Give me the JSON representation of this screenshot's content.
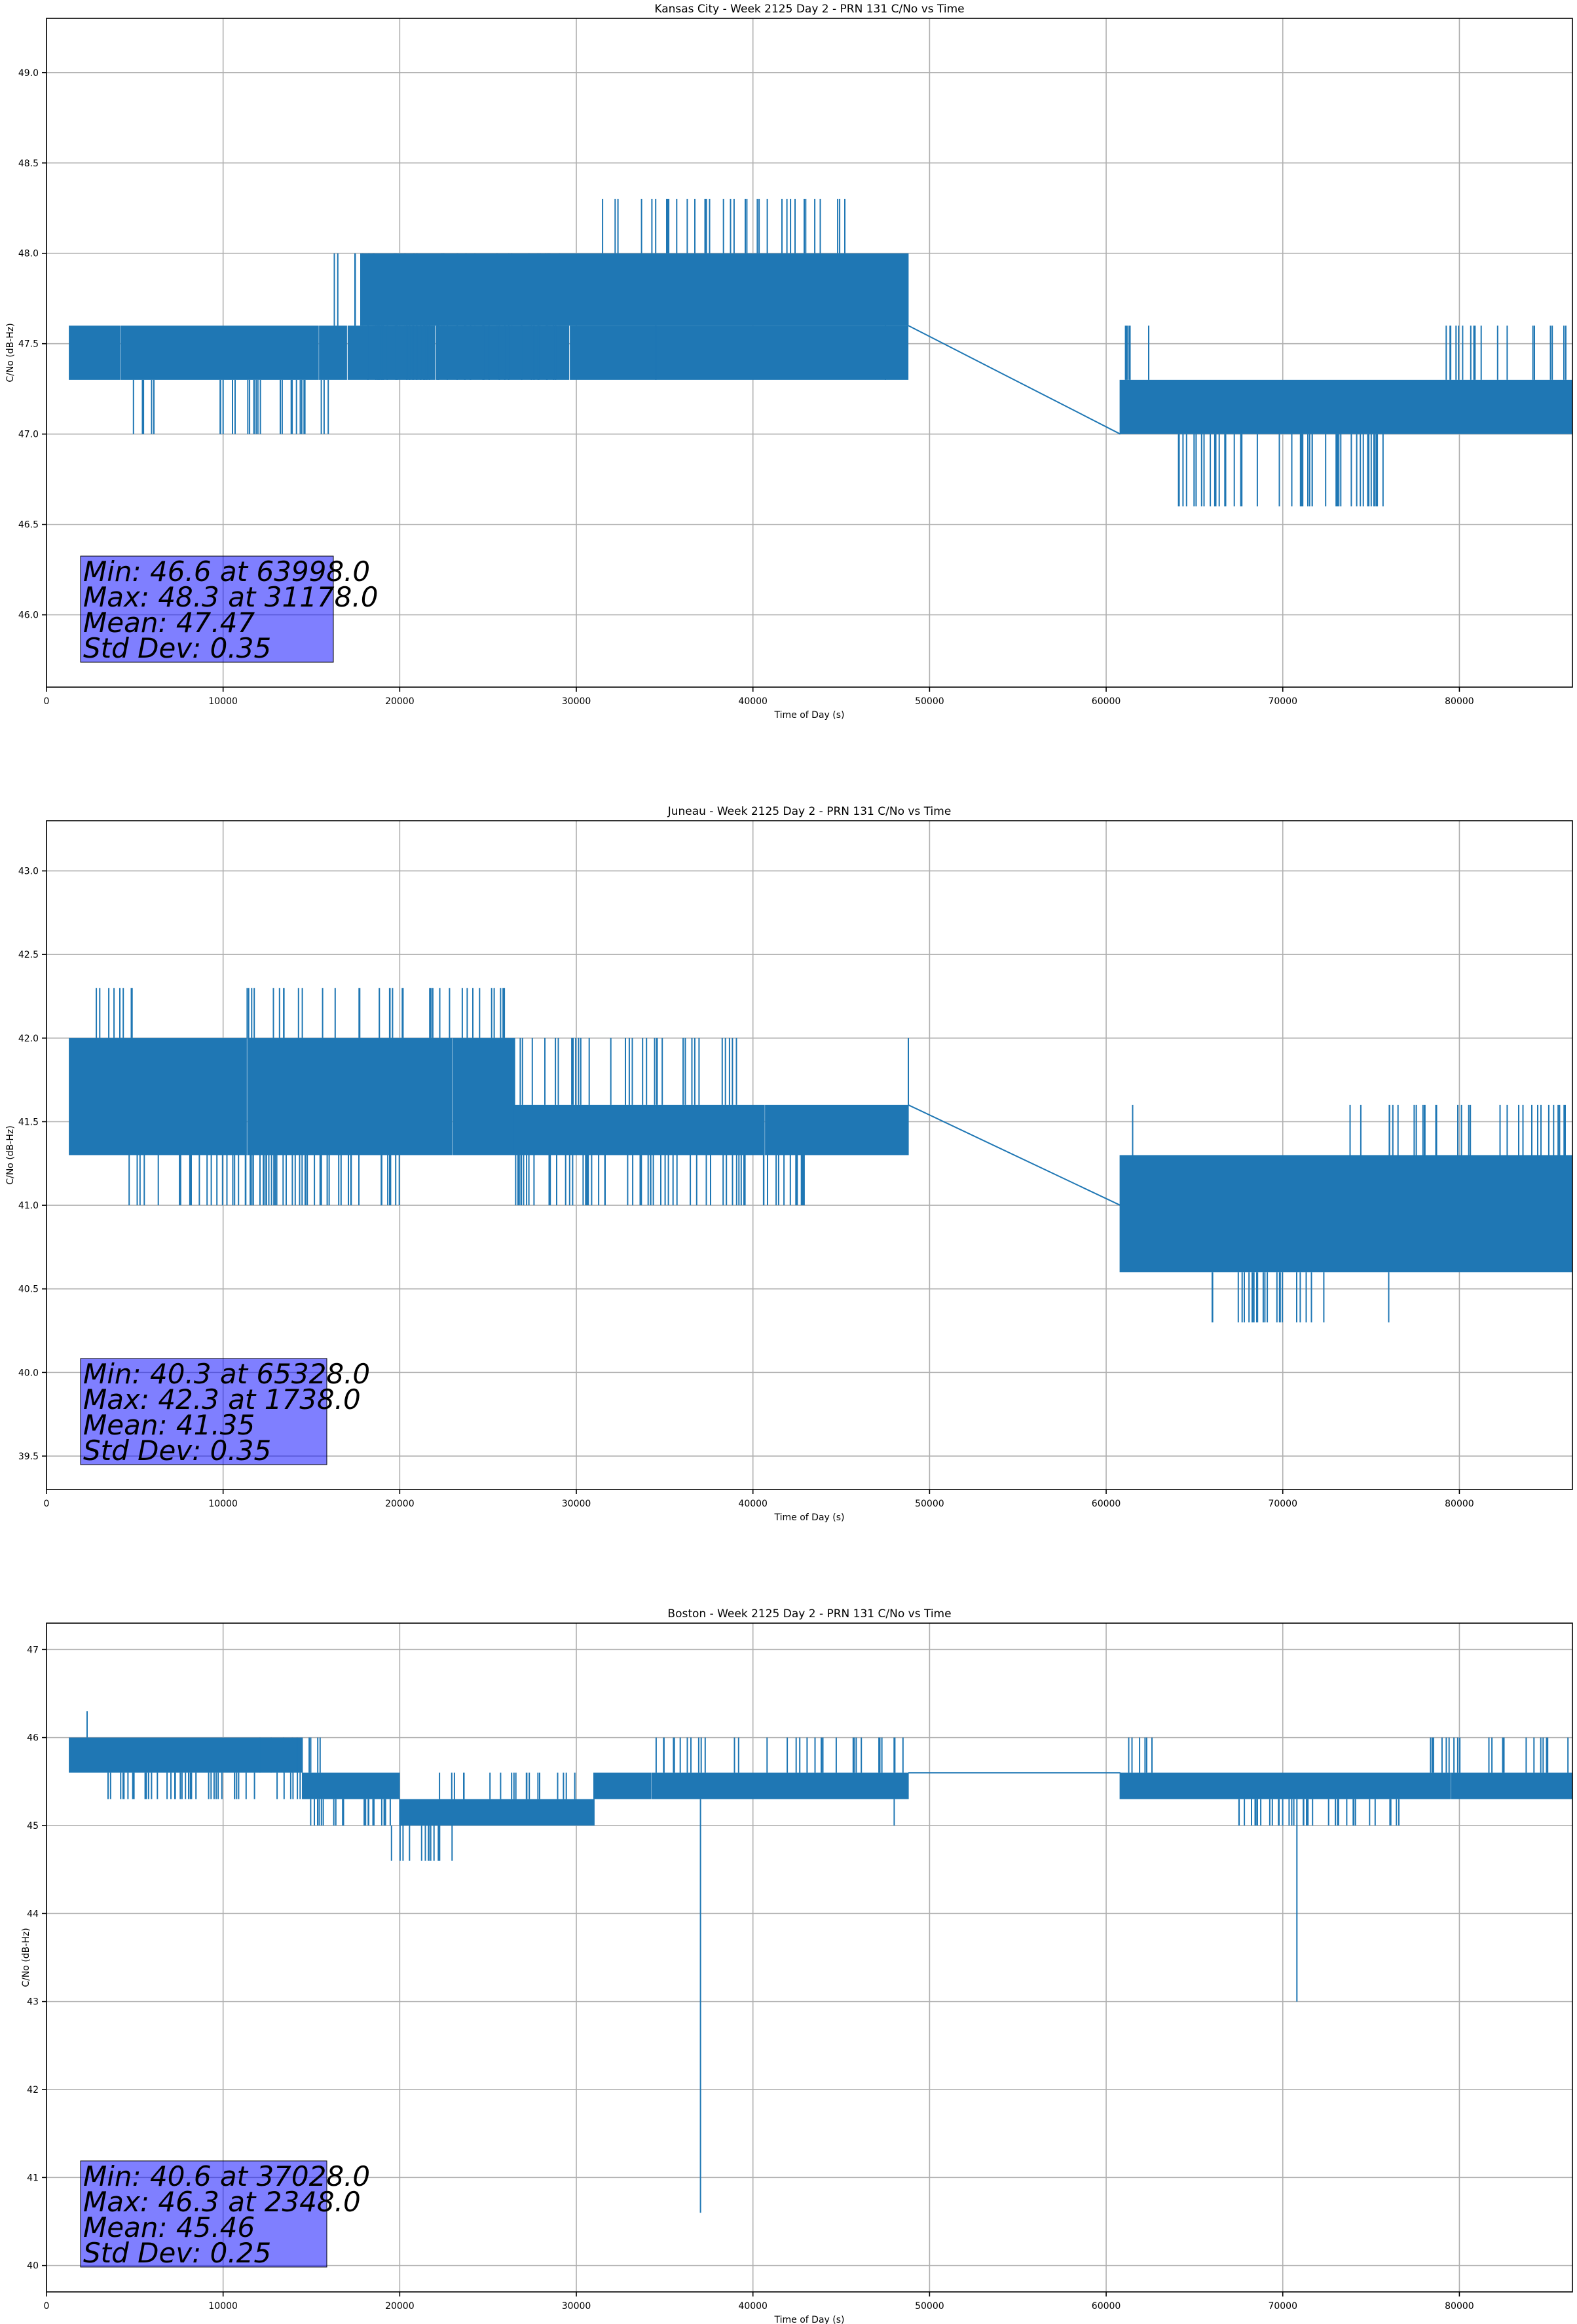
{
  "chart_data": [
    {
      "type": "line",
      "title": "Kansas City - Week 2125 Day 2 - PRN 131 C/No vs Time",
      "xlabel": "Time of Day (s)",
      "ylabel": "C/No (dB-Hz)",
      "xlim": [
        0,
        86400
      ],
      "ylim": [
        45.6,
        49.3
      ],
      "xticks": [
        0,
        10000,
        20000,
        30000,
        40000,
        50000,
        60000,
        70000,
        80000
      ],
      "yticks": [
        "46.0",
        "46.5",
        "47.0",
        "47.5",
        "48.0",
        "48.5",
        "49.0"
      ],
      "grid": true,
      "color": "#1f77b4",
      "gap": [
        48800,
        60800
      ],
      "segments": [
        {
          "x": [
            1300,
            48800
          ],
          "band": [
            47.3,
            47.6
          ],
          "lo": [
            {
              "x": [
                4800,
                6200
              ],
              "y": 47.0
            },
            {
              "x": [
                9500,
                16000
              ],
              "y": 47.0
            }
          ],
          "hi": [
            {
              "x": [
                16000,
                29500
              ],
              "y": 48.0
            }
          ]
        },
        {
          "x": [
            17800,
            48800
          ],
          "band": [
            47.6,
            48.0
          ],
          "lo": [
            {
              "x": [
                17800,
                29000
              ],
              "y": 47.3
            },
            {
              "x": [
                34500,
                34500
              ],
              "y": 47.3
            },
            {
              "x": [
                47500,
                47500
              ],
              "y": 47.3
            }
          ],
          "hi": [
            {
              "x": [
                31000,
                45500
              ],
              "y": 48.3
            }
          ]
        },
        {
          "x": [
            60800,
            86400
          ],
          "band": [
            47.0,
            47.3
          ],
          "lo": [
            {
              "x": [
                64000,
                76000
              ],
              "y": 46.6
            }
          ],
          "hi": [
            {
              "x": [
                61000,
                62500
              ],
              "y": 47.6
            },
            {
              "x": [
                79000,
                86400
              ],
              "y": 47.6
            }
          ]
        }
      ],
      "gap_line": [
        [
          48800,
          47.6
        ],
        [
          60800,
          47.0
        ]
      ],
      "stats": [
        "Min: 46.6 at 63998.0",
        "Max: 48.3 at 31178.0",
        "Mean: 47.47",
        "Std Dev: 0.35"
      ]
    },
    {
      "type": "line",
      "title": "Juneau - Week 2125 Day 2 - PRN 131 C/No vs Time",
      "xlabel": "Time of Day (s)",
      "ylabel": "C/No (dB-Hz)",
      "xlim": [
        0,
        86400
      ],
      "ylim": [
        39.3,
        43.3
      ],
      "xticks": [
        0,
        10000,
        20000,
        30000,
        40000,
        50000,
        60000,
        70000,
        80000
      ],
      "yticks": [
        "39.5",
        "40.0",
        "40.5",
        "41.0",
        "41.5",
        "42.0",
        "42.5",
        "43.0"
      ],
      "grid": true,
      "color": "#1f77b4",
      "gap": [
        48800,
        60800
      ],
      "segments": [
        {
          "x": [
            1300,
            26500
          ],
          "band": [
            41.3,
            42.0
          ],
          "lo": [
            {
              "x": [
                4500,
                20000
              ],
              "y": 41.0
            }
          ],
          "hi": [
            {
              "x": [
                1500,
                5000
              ],
              "y": 42.3
            },
            {
              "x": [
                11000,
                26000
              ],
              "y": 42.3
            }
          ]
        },
        {
          "x": [
            26500,
            48800
          ],
          "band": [
            41.3,
            41.6
          ],
          "lo": [
            {
              "x": [
                26500,
                43000
              ],
              "y": 41.0
            }
          ],
          "hi": [
            {
              "x": [
                26500,
                40000
              ],
              "y": 42.0
            },
            {
              "x": [
                48800,
                48800
              ],
              "y": 42.0
            }
          ]
        },
        {
          "x": [
            60800,
            86400
          ],
          "band": [
            40.6,
            41.3
          ],
          "lo": [
            {
              "x": [
                66000,
                72500
              ],
              "y": 40.3
            },
            {
              "x": [
                76000,
                76000
              ],
              "y": 40.3
            }
          ],
          "hi": [
            {
              "x": [
                61500,
                61500
              ],
              "y": 41.6
            },
            {
              "x": [
                73500,
                86400
              ],
              "y": 41.6
            }
          ]
        }
      ],
      "gap_line": [
        [
          48800,
          41.6
        ],
        [
          60800,
          41.0
        ]
      ],
      "stats": [
        "Min: 40.3 at 65328.0",
        "Max: 42.3 at 1738.0",
        "Mean: 41.35",
        "Std Dev: 0.35"
      ]
    },
    {
      "type": "line",
      "title": "Boston - Week 2125 Day 2 - PRN 131 C/No vs Time",
      "xlabel": "Time of Day (s)",
      "ylabel": "C/No (dB-Hz)",
      "xlim": [
        0,
        86400
      ],
      "ylim": [
        39.7,
        47.3
      ],
      "xticks": [
        0,
        10000,
        20000,
        30000,
        40000,
        50000,
        60000,
        70000,
        80000
      ],
      "yticks": [
        "40",
        "41",
        "42",
        "43",
        "44",
        "45",
        "46",
        "47"
      ],
      "grid": true,
      "color": "#1f77b4",
      "gap": [
        48800,
        60800
      ],
      "segments": [
        {
          "x": [
            1300,
            14500
          ],
          "band": [
            45.6,
            46.0
          ],
          "lo": [
            {
              "x": [
                3000,
                14500
              ],
              "y": 45.3
            }
          ],
          "hi": [
            {
              "x": [
                2300,
                2300
              ],
              "y": 46.3
            }
          ]
        },
        {
          "x": [
            14500,
            20000
          ],
          "band": [
            45.3,
            45.6
          ],
          "lo": [
            {
              "x": [
                14500,
                20000
              ],
              "y": 45.0
            }
          ],
          "hi": [
            {
              "x": [
                12000,
                16000
              ],
              "y": 46.0
            }
          ]
        },
        {
          "x": [
            20000,
            31000
          ],
          "band": [
            45.0,
            45.3
          ],
          "lo": [
            {
              "x": [
                19500,
                23000
              ],
              "y": 44.6
            }
          ],
          "hi": [
            {
              "x": [
                22000,
                30000
              ],
              "y": 45.6
            }
          ]
        },
        {
          "x": [
            31000,
            48800
          ],
          "band": [
            45.3,
            45.6
          ],
          "lo": [
            {
              "x": [
                37028,
                37028
              ],
              "y": 40.6
            },
            {
              "x": [
                48000,
                48000
              ],
              "y": 45.0
            }
          ],
          "hi": [
            {
              "x": [
                34000,
                48500
              ],
              "y": 46.0
            }
          ]
        },
        {
          "x": [
            48800,
            60800
          ],
          "band": [
            45.6,
            45.6
          ],
          "lo": [],
          "hi": []
        },
        {
          "x": [
            60800,
            86400
          ],
          "band": [
            45.3,
            45.6
          ],
          "lo": [
            {
              "x": [
                67000,
                77000
              ],
              "y": 45.0
            },
            {
              "x": [
                70800,
                70800
              ],
              "y": 43.0
            }
          ],
          "hi": [
            {
              "x": [
                60800,
                63000
              ],
              "y": 46.0
            },
            {
              "x": [
                78000,
                86400
              ],
              "y": 46.0
            }
          ]
        }
      ],
      "gap_line": [
        [
          48800,
          45.6
        ],
        [
          60800,
          45.6
        ]
      ],
      "stats": [
        "Min: 40.6 at 37028.0",
        "Max: 46.3 at 2348.0",
        "Mean: 45.46",
        "Std Dev: 0.25"
      ]
    }
  ]
}
